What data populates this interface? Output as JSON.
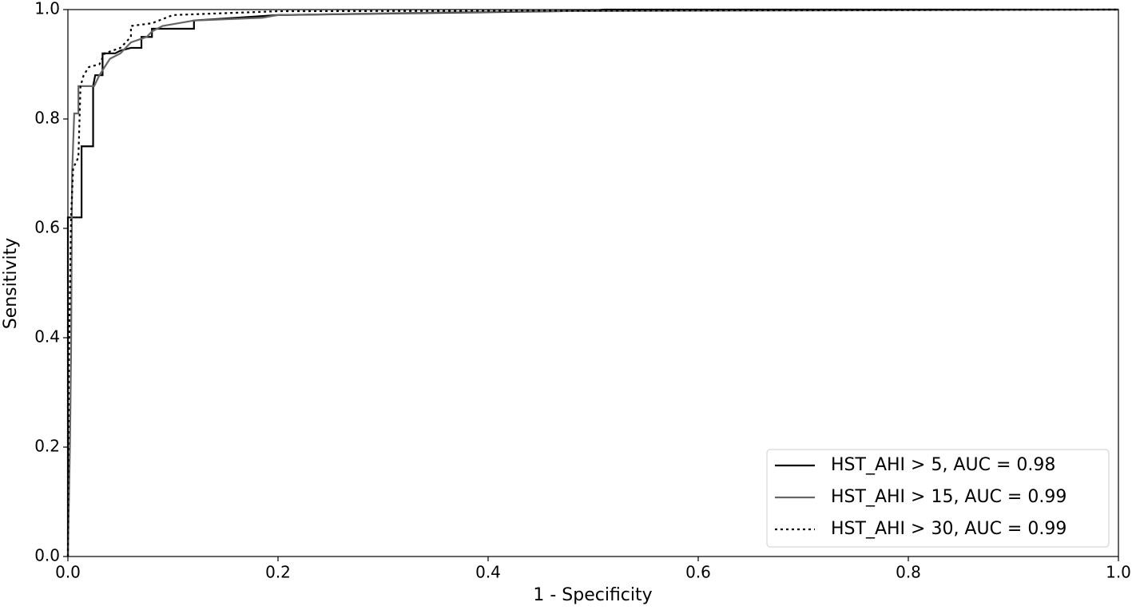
{
  "chart_data": {
    "type": "line",
    "xlabel": "1 - Specificity",
    "ylabel": "Sensitivity",
    "xlim": [
      0,
      1
    ],
    "ylim": [
      0,
      1
    ],
    "xticks": [
      {
        "value": 0,
        "label": "0.0"
      },
      0.2,
      0.4,
      0.6,
      0.8,
      {
        "value": 1,
        "label": "1.0"
      }
    ],
    "yticks": [
      {
        "value": 0,
        "label": "0.0"
      },
      0.2,
      0.4,
      0.6,
      0.8,
      {
        "value": 1,
        "label": "1.0"
      }
    ],
    "legend": "lower right",
    "series": [
      {
        "name": "HST_AHI > 5, AUC = 0.98",
        "color": "#000000",
        "dash": "solid",
        "x": [
          0,
          0,
          0.013,
          0.013,
          0.024,
          0.024,
          0.026,
          0.033,
          0.033,
          0.045,
          0.05,
          0.06,
          0.07,
          0.07,
          0.08,
          0.08,
          0.12,
          0.12,
          0.2,
          0.5,
          0.51,
          1
        ],
        "values": [
          0,
          0.62,
          0.62,
          0.75,
          0.75,
          0.86,
          0.88,
          0.88,
          0.92,
          0.92,
          0.925,
          0.93,
          0.93,
          0.95,
          0.95,
          0.965,
          0.965,
          0.98,
          0.99,
          0.998,
          1,
          1
        ]
      },
      {
        "name": "HST_AHI > 15, AUC = 0.99",
        "color": "#666666",
        "dash": "solid",
        "x": [
          0,
          0.002,
          0.003,
          0.004,
          0.006,
          0.01,
          0.01,
          0.025,
          0.03,
          0.04,
          0.05,
          0.06,
          0.075,
          0.08,
          0.09,
          0.12,
          0.185,
          0.2,
          0.36,
          0.45,
          1
        ],
        "values": [
          0,
          0.21,
          0.37,
          0.7,
          0.81,
          0.81,
          0.86,
          0.86,
          0.88,
          0.91,
          0.92,
          0.94,
          0.95,
          0.96,
          0.97,
          0.98,
          0.985,
          0.99,
          0.995,
          0.997,
          1
        ]
      },
      {
        "name": "HST_AHI > 30, AUC = 0.99",
        "color": "#000000",
        "dash": "dotted",
        "x": [
          0,
          0.001,
          0.003,
          0.005,
          0.01,
          0.012,
          0.015,
          0.02,
          0.03,
          0.035,
          0.05,
          0.06,
          0.06,
          0.08,
          0.1,
          0.2,
          1
        ],
        "values": [
          0,
          0.36,
          0.62,
          0.71,
          0.73,
          0.86,
          0.88,
          0.895,
          0.9,
          0.92,
          0.93,
          0.95,
          0.97,
          0.975,
          0.99,
          0.997,
          1
        ]
      }
    ]
  }
}
